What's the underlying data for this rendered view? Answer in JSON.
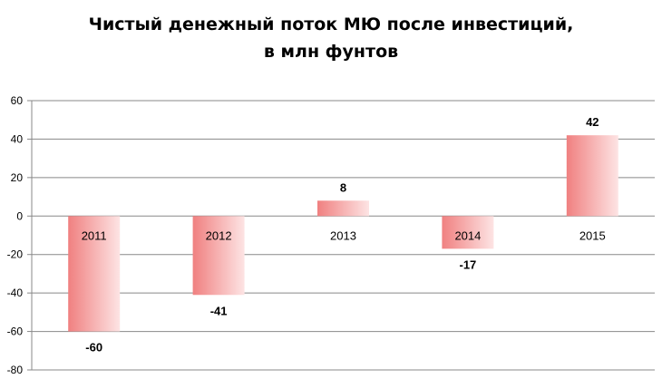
{
  "title_lines": [
    "Чистый денежный поток МЮ после инвестиций,",
    "в млн фунтов"
  ],
  "chart_data": {
    "type": "bar",
    "title": "Чистый денежный поток МЮ после инвестиций, в млн фунтов",
    "xlabel": "",
    "ylabel": "",
    "categories": [
      "2011",
      "2012",
      "2013",
      "2014",
      "2015"
    ],
    "values": [
      -60,
      -41,
      8,
      -17,
      42
    ],
    "data_labels": [
      "-60",
      "-41",
      "8",
      "-17",
      "42"
    ],
    "ylim": [
      -80,
      60
    ],
    "yticks": [
      60,
      40,
      20,
      0,
      -20,
      -40,
      -60,
      -80
    ],
    "ytick_labels": [
      "60",
      "40",
      "20",
      "0",
      "-20",
      "-40",
      "-60",
      "-80"
    ],
    "grid": true,
    "bar_color_dark": "#f08080",
    "bar_color_light": "#fde4e4"
  }
}
